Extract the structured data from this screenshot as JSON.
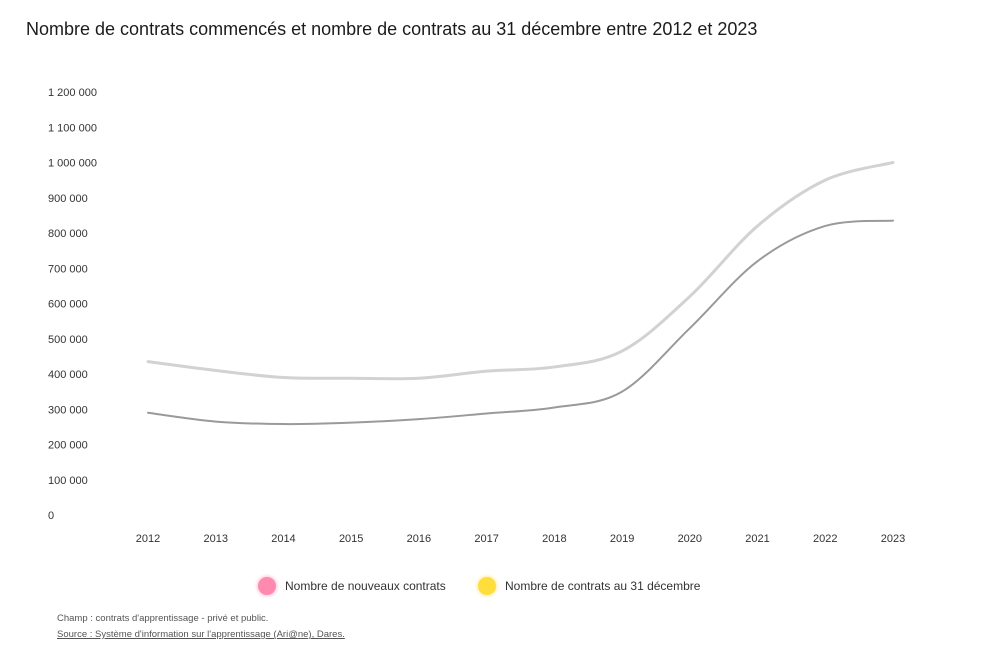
{
  "title": "Nombre de contrats commencés et nombre de contrats au 31 décembre entre 2012 et 2023",
  "legend": [
    {
      "label": "Nombre de nouveaux contrats",
      "color": "#ff8ab0"
    },
    {
      "label": "Nombre de contrats au 31 décembre",
      "color": "#ffdd3d"
    }
  ],
  "notes": {
    "champ": "Champ : contrats d'apprentissage - privé et public.",
    "source": "Source : Système d'information sur l'apprentissage (Ari@ne), Dares."
  },
  "chart_data": {
    "type": "line",
    "categories": [
      "2012",
      "2013",
      "2014",
      "2015",
      "2016",
      "2017",
      "2018",
      "2019",
      "2020",
      "2021",
      "2022",
      "2023"
    ],
    "y_ticks": [
      "0",
      "100 000",
      "200 000",
      "300 000",
      "400 000",
      "500 000",
      "600 000",
      "700 000",
      "800 000",
      "900 000",
      "1 000 000",
      "1 100 000",
      "1 200 000"
    ],
    "ylim": [
      0,
      1200000
    ],
    "grid": false,
    "legend_position": "bottom",
    "series": [
      {
        "name": "Nombre de nouveaux contrats",
        "color": "#9a9a9a",
        "values": [
          290000,
          265000,
          258000,
          262000,
          272000,
          288000,
          305000,
          350000,
          530000,
          720000,
          820000,
          835000
        ]
      },
      {
        "name": "Nombre de contrats au 31 décembre",
        "color": "#d2d2d2",
        "values": [
          435000,
          410000,
          390000,
          388000,
          388000,
          408000,
          420000,
          465000,
          620000,
          820000,
          950000,
          1000000
        ]
      }
    ]
  }
}
